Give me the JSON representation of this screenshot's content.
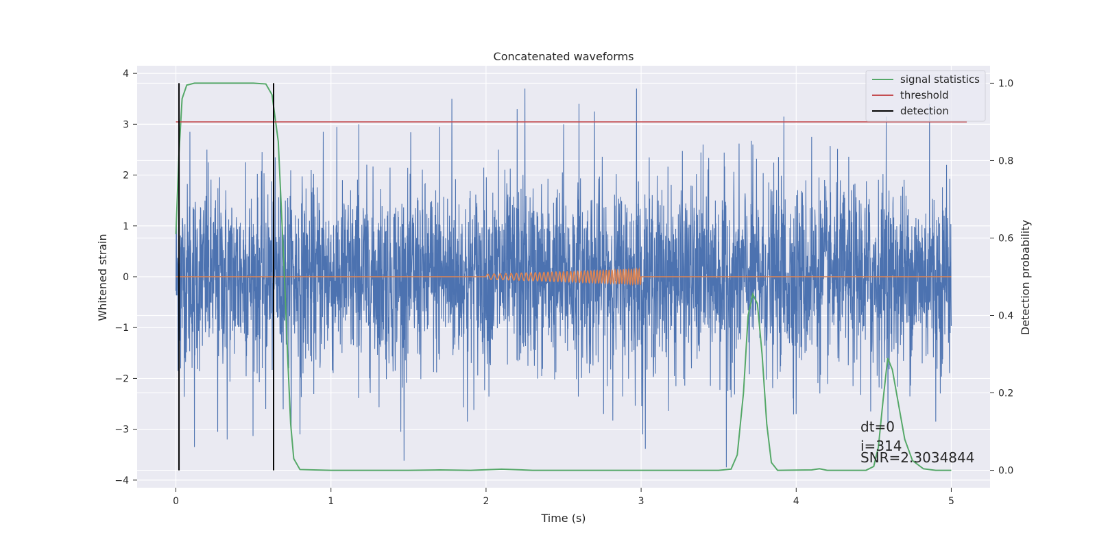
{
  "chart_data": {
    "type": "line",
    "title": "Concatenated waveforms",
    "xlabel": "Time (s)",
    "ylabel": "Whitened strain",
    "y2label": "Detection probability",
    "xlim": [
      -0.25,
      5.25
    ],
    "ylim": [
      -4.15,
      4.15
    ],
    "y2lim": [
      -0.045,
      1.045
    ],
    "xticks": [
      0,
      1,
      2,
      3,
      4,
      5
    ],
    "yticks": [
      4,
      3,
      2,
      1,
      0,
      -1,
      -2,
      -3,
      -4
    ],
    "y2ticks": [
      1.0,
      0.8,
      0.6,
      0.4,
      0.2,
      0.0
    ],
    "grid": true,
    "legend_position": "top-right",
    "legend": [
      "signal statistics",
      "threshold",
      "detection"
    ],
    "colors": {
      "strain": "#4c72b0",
      "template": "#dd8452",
      "statistic": "#55a868",
      "threshold": "#c44e52",
      "detection": "#000000",
      "background": "#eaeaf2",
      "grid": "#ffffff"
    },
    "strain": {
      "name": "whitened strain",
      "t_range": [
        0,
        5
      ],
      "typical_amplitude": 1.0,
      "spikes": [
        [
          0.02,
          0.05
        ],
        [
          0.03,
          -1.8
        ],
        [
          0.09,
          2.85
        ],
        [
          0.12,
          -3.35
        ],
        [
          0.2,
          2.5
        ],
        [
          0.27,
          -3.05
        ],
        [
          0.33,
          -3.2
        ],
        [
          0.45,
          2.25
        ],
        [
          0.58,
          -2.6
        ],
        [
          0.64,
          2.35
        ],
        [
          0.8,
          -3.1
        ],
        [
          0.95,
          2.85
        ],
        [
          1.18,
          3.0
        ],
        [
          1.45,
          -3.05
        ],
        [
          1.7,
          2.95
        ],
        [
          1.78,
          3.5
        ],
        [
          1.88,
          -2.85
        ],
        [
          2.08,
          2.5
        ],
        [
          2.2,
          3.3
        ],
        [
          2.25,
          3.7
        ],
        [
          2.5,
          3.0
        ],
        [
          2.6,
          3.4
        ],
        [
          2.7,
          3.25
        ],
        [
          2.97,
          3.7
        ],
        [
          3.01,
          -3.1
        ],
        [
          3.4,
          2.6
        ],
        [
          3.55,
          -3.75
        ],
        [
          3.72,
          2.6
        ],
        [
          3.92,
          3.15
        ],
        [
          4.0,
          -2.7
        ],
        [
          4.1,
          2.75
        ],
        [
          4.48,
          -2.65
        ],
        [
          4.58,
          3.15
        ],
        [
          4.86,
          3.4
        ],
        [
          4.9,
          -2.85
        ],
        [
          4.97,
          2.2
        ]
      ]
    },
    "template": {
      "name": "injected waveform",
      "t_start": 2.0,
      "t_end": 3.0,
      "cycles": 42,
      "amp_start": 0.05,
      "amp_end": 0.15
    },
    "statistic": {
      "name": "signal statistics",
      "points": [
        [
          0.0,
          0.61
        ],
        [
          0.02,
          0.82
        ],
        [
          0.04,
          0.96
        ],
        [
          0.07,
          0.995
        ],
        [
          0.12,
          1.0
        ],
        [
          0.5,
          1.0
        ],
        [
          0.58,
          0.998
        ],
        [
          0.62,
          0.97
        ],
        [
          0.66,
          0.85
        ],
        [
          0.7,
          0.5
        ],
        [
          0.72,
          0.3
        ],
        [
          0.74,
          0.12
        ],
        [
          0.76,
          0.03
        ],
        [
          0.8,
          0.002
        ],
        [
          1.0,
          0.0
        ],
        [
          1.5,
          0.0
        ],
        [
          1.7,
          0.001
        ],
        [
          1.9,
          0.0
        ],
        [
          2.1,
          0.003
        ],
        [
          2.3,
          0.0
        ],
        [
          3.0,
          0.0
        ],
        [
          3.5,
          0.0
        ],
        [
          3.58,
          0.003
        ],
        [
          3.62,
          0.04
        ],
        [
          3.66,
          0.2
        ],
        [
          3.69,
          0.4
        ],
        [
          3.72,
          0.455
        ],
        [
          3.75,
          0.43
        ],
        [
          3.78,
          0.3
        ],
        [
          3.81,
          0.12
        ],
        [
          3.84,
          0.02
        ],
        [
          3.88,
          0.0
        ],
        [
          4.1,
          0.001
        ],
        [
          4.15,
          0.004
        ],
        [
          4.2,
          0.0
        ],
        [
          4.45,
          0.0
        ],
        [
          4.5,
          0.01
        ],
        [
          4.53,
          0.06
        ],
        [
          4.56,
          0.18
        ],
        [
          4.59,
          0.29
        ],
        [
          4.62,
          0.26
        ],
        [
          4.66,
          0.17
        ],
        [
          4.7,
          0.08
        ],
        [
          4.75,
          0.025
        ],
        [
          4.82,
          0.004
        ],
        [
          4.9,
          0.0
        ],
        [
          5.0,
          0.0
        ]
      ]
    },
    "threshold": {
      "name": "threshold",
      "value": 0.9,
      "t_range": [
        0,
        5.1
      ]
    },
    "detections": [
      0.02,
      0.63
    ],
    "annotations": {
      "dt": "dt=0",
      "i": "i=314",
      "snr": "SNR=2.3034844"
    }
  }
}
